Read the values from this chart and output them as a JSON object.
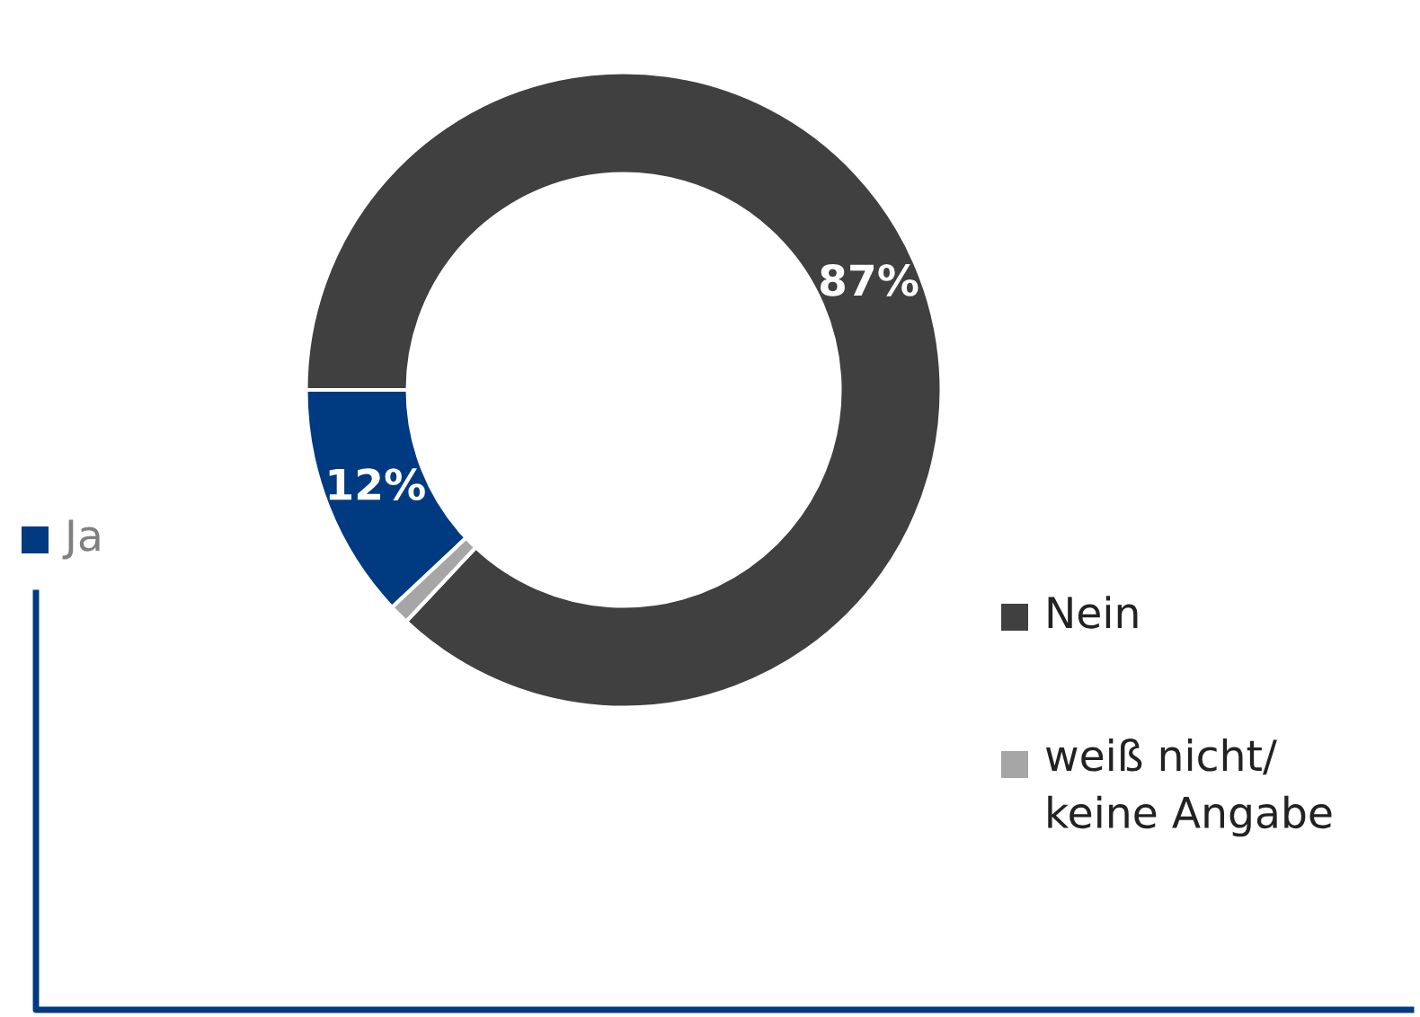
{
  "chart_data": {
    "type": "donut",
    "categories": [
      "Ja",
      "Nein",
      "weiß nicht/\nkeine Angabe"
    ],
    "values": [
      12,
      87,
      1
    ],
    "colors": [
      "#003a80",
      "#404040",
      "#a6a6a6"
    ],
    "value_labels": [
      "12%",
      "87%",
      null
    ],
    "legend": "right"
  }
}
